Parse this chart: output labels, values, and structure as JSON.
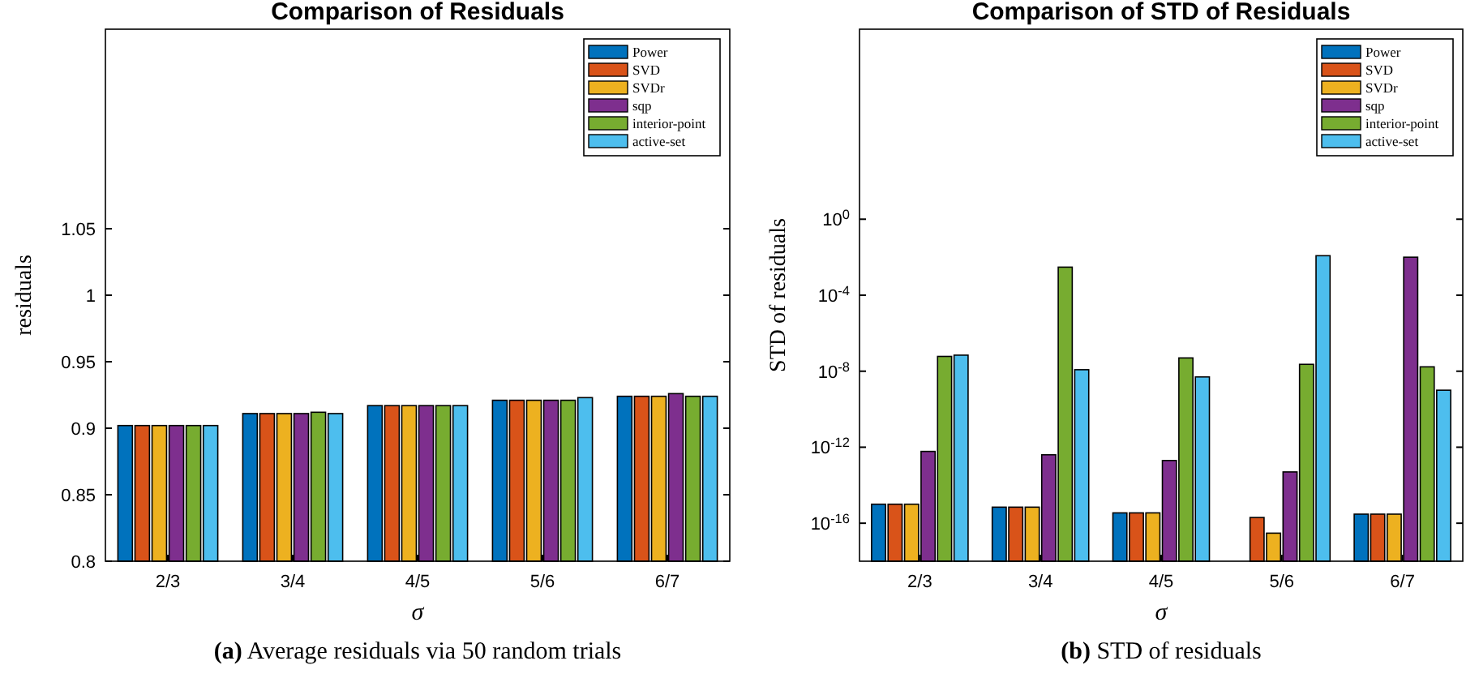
{
  "chart_data": [
    {
      "type": "bar",
      "title": "Comparison of Residuals",
      "xlabel": "σ",
      "ylabel": "residuals",
      "categories": [
        "2/3",
        "3/4",
        "4/5",
        "5/6",
        "6/7"
      ],
      "series": [
        {
          "name": "Power",
          "color": "#0072bd",
          "values": [
            0.902,
            0.911,
            0.917,
            0.921,
            0.924
          ]
        },
        {
          "name": "SVD",
          "color": "#d95319",
          "values": [
            0.902,
            0.911,
            0.917,
            0.921,
            0.924
          ]
        },
        {
          "name": "SVDr",
          "color": "#edb120",
          "values": [
            0.902,
            0.911,
            0.917,
            0.921,
            0.924
          ]
        },
        {
          "name": "sqp",
          "color": "#7e2f8e",
          "values": [
            0.902,
            0.911,
            0.917,
            0.921,
            0.926
          ]
        },
        {
          "name": "interior-point",
          "color": "#77ac30",
          "values": [
            0.902,
            0.912,
            0.917,
            0.921,
            0.924
          ]
        },
        {
          "name": "active-set",
          "color": "#4dbeee",
          "values": [
            0.902,
            0.911,
            0.917,
            0.923,
            0.924
          ]
        }
      ],
      "ylim": [
        0.8,
        1.2
      ],
      "yticks": [
        0.8,
        0.85,
        0.9,
        0.95,
        1,
        1.05
      ],
      "grid": false,
      "legend": "top right",
      "annotations": [
        "(a) Average residuals via 50 random trials"
      ]
    },
    {
      "type": "bar",
      "title": "Comparison of STD of Residuals",
      "xlabel": "σ",
      "ylabel": "STD of residuals",
      "categories": [
        "2/3",
        "3/4",
        "4/5",
        "5/6",
        "6/7"
      ],
      "series": [
        {
          "name": "Power",
          "color": "#0072bd",
          "values": [
            1e-15,
            7e-16,
            3.5e-16,
            null,
            3e-16
          ]
        },
        {
          "name": "SVD",
          "color": "#d95319",
          "values": [
            1e-15,
            7e-16,
            3.5e-16,
            2e-16,
            3e-16
          ]
        },
        {
          "name": "SVDr",
          "color": "#edb120",
          "values": [
            1e-15,
            7e-16,
            3.5e-16,
            3e-17,
            3e-16
          ]
        },
        {
          "name": "sqp",
          "color": "#7e2f8e",
          "values": [
            6e-13,
            4e-13,
            2e-13,
            5e-14,
            0.01
          ]
        },
        {
          "name": "interior-point",
          "color": "#77ac30",
          "values": [
            6e-08,
            0.003,
            5e-08,
            2.3e-08,
            1.7e-08
          ]
        },
        {
          "name": "active-set",
          "color": "#4dbeee",
          "values": [
            7e-08,
            1.2e-08,
            5e-09,
            0.012,
            1e-09
          ]
        }
      ],
      "log": true,
      "ylim": [
        1e-18,
        10000000000.0
      ],
      "yticks": [
        {
          "value": 1e-16,
          "label": "10$^{-16}$"
        },
        {
          "value": 1e-12,
          "label": "10$^{-12}$"
        },
        {
          "value": 1e-08,
          "label": "10$^{-8}$"
        },
        {
          "value": 0.0001,
          "label": "10$^{-4}$"
        },
        {
          "value": 1,
          "label": "10$^{0}$"
        }
      ],
      "grid": false,
      "legend": "top right",
      "annotations": [
        "(b) STD of residuals"
      ]
    }
  ]
}
